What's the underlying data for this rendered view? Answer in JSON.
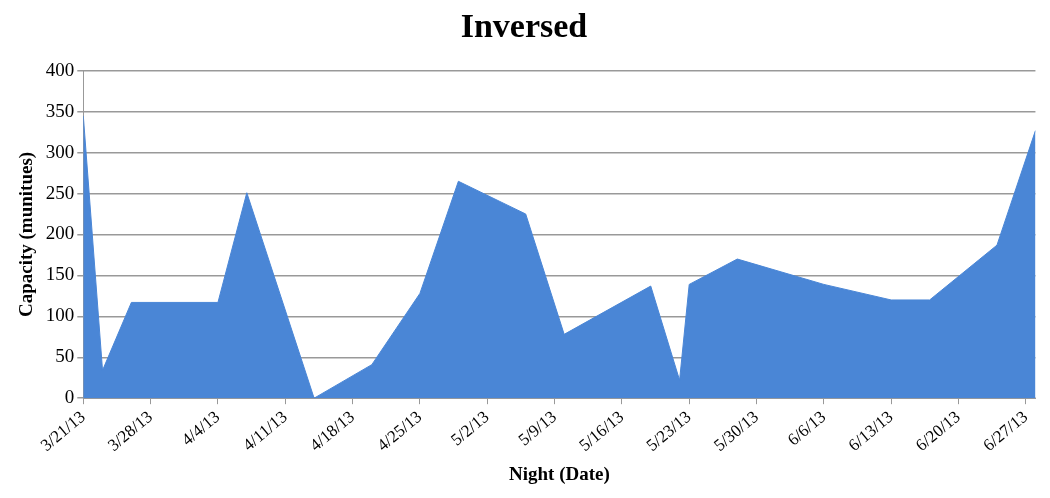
{
  "chart_data": {
    "type": "area",
    "title": "Inversed",
    "xlabel": "Night (Date)",
    "ylabel": "Capacity (munitues)",
    "x": [
      "--03-21",
      "--03-23",
      "--03-26",
      "--04-04",
      "--04-07",
      "--04-14",
      "--04-20",
      "--04-25",
      "--04-29",
      "--05-06",
      "--05-10",
      "--05-19",
      "--05-22",
      "--05-23",
      "--05-28",
      "--06-06",
      "--06-13",
      "--06-17",
      "--06-24",
      "--06-28"
    ],
    "values": [
      345,
      34,
      117,
      117,
      251,
      0,
      41,
      128,
      265,
      225,
      78,
      137,
      22,
      139,
      170,
      139,
      120,
      120,
      187,
      327
    ],
    "color": "#4a86d6",
    "xlim": [
      "--03-21",
      "--06-28"
    ],
    "xticks": [
      {
        "value": "--03-21",
        "label": "3/21/13"
      },
      {
        "value": "--03-28",
        "label": "3/28/13"
      },
      {
        "value": "--04-04",
        "label": "4/4/13"
      },
      {
        "value": "--04-11",
        "label": "4/11/13"
      },
      {
        "value": "--04-18",
        "label": "4/18/13"
      },
      {
        "value": "--04-25",
        "label": "4/25/13"
      },
      {
        "value": "--05-02",
        "label": "5/2/13"
      },
      {
        "value": "--05-09",
        "label": "5/9/13"
      },
      {
        "value": "--05-16",
        "label": "5/16/13"
      },
      {
        "value": "--05-23",
        "label": "5/23/13"
      },
      {
        "value": "--05-30",
        "label": "5/30/13"
      },
      {
        "value": "--06-06",
        "label": "6/6/13"
      },
      {
        "value": "--06-13",
        "label": "6/13/13"
      },
      {
        "value": "--06-20",
        "label": "6/20/13"
      },
      {
        "value": "--06-27",
        "label": "6/27/13"
      }
    ],
    "ylim": [
      0,
      400
    ],
    "yticks": [
      0,
      50,
      100,
      150,
      200,
      250,
      300,
      350,
      400
    ],
    "grid": "y",
    "legend": false,
    "marker": "none"
  }
}
